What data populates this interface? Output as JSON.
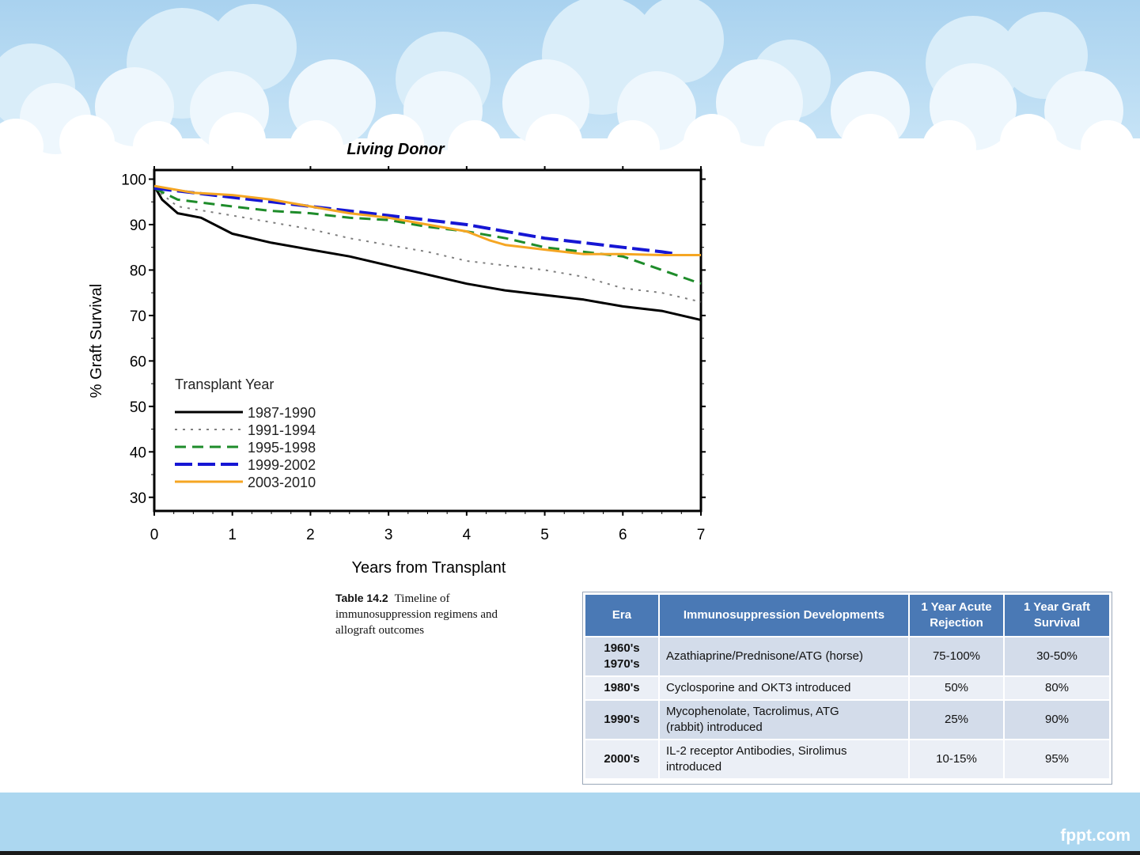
{
  "slide": {
    "footer_brand": "fppt.com",
    "colors": {
      "sky": "#b2d6ef",
      "cloud": "#ffffff",
      "footer_band": "#acd7f0"
    }
  },
  "chart_data": {
    "type": "line",
    "title": "Living Donor",
    "xlabel": "Years from Transplant",
    "ylabel": "% Graft Survival",
    "xlim": [
      0,
      7
    ],
    "ylim": [
      27,
      102
    ],
    "x_ticks": [
      "0",
      "1",
      "2",
      "3",
      "4",
      "5",
      "6",
      "7"
    ],
    "y_ticks": [
      "30",
      "40",
      "50",
      "60",
      "70",
      "80",
      "90",
      "100"
    ],
    "legend": {
      "title": "Transplant Year",
      "position": "lower-left"
    },
    "series": [
      {
        "name": "1987-1990",
        "color": "#000000",
        "dash": "solid",
        "points": [
          [
            0,
            98.5
          ],
          [
            0.1,
            95.5
          ],
          [
            0.3,
            92.5
          ],
          [
            0.6,
            91.5
          ],
          [
            1,
            88
          ],
          [
            1.5,
            86
          ],
          [
            2,
            84.5
          ],
          [
            2.5,
            83
          ],
          [
            3,
            81
          ],
          [
            3.5,
            79
          ],
          [
            4,
            77
          ],
          [
            4.5,
            75.5
          ],
          [
            5,
            74.5
          ],
          [
            5.5,
            73.5
          ],
          [
            6,
            72
          ],
          [
            6.5,
            71
          ],
          [
            7,
            69
          ]
        ]
      },
      {
        "name": "1991-1994",
        "color": "#7f7f7f",
        "dash": "dot",
        "points": [
          [
            0,
            98
          ],
          [
            0.3,
            94
          ],
          [
            1,
            92
          ],
          [
            1.5,
            90.5
          ],
          [
            2,
            89
          ],
          [
            2.5,
            87
          ],
          [
            3,
            85.5
          ],
          [
            3.5,
            84
          ],
          [
            4,
            82
          ],
          [
            4.5,
            81
          ],
          [
            5,
            80
          ],
          [
            5.5,
            78.5
          ],
          [
            6,
            76
          ],
          [
            6.5,
            75
          ],
          [
            7,
            73
          ]
        ]
      },
      {
        "name": "1995-1998",
        "color": "#1e8c2a",
        "dash": "dash",
        "points": [
          [
            0,
            98
          ],
          [
            0.3,
            95.5
          ],
          [
            1,
            94
          ],
          [
            1.5,
            93
          ],
          [
            2,
            92.5
          ],
          [
            2.5,
            91.5
          ],
          [
            3,
            91
          ],
          [
            3.5,
            89.5
          ],
          [
            4,
            88.5
          ],
          [
            4.5,
            87
          ],
          [
            5,
            85
          ],
          [
            5.5,
            84
          ],
          [
            6,
            83
          ],
          [
            6.5,
            80
          ],
          [
            7,
            77
          ]
        ]
      },
      {
        "name": "1999-2002",
        "color": "#1616d4",
        "dash": "longdash",
        "points": [
          [
            0,
            98
          ],
          [
            0.5,
            97
          ],
          [
            1,
            96
          ],
          [
            1.5,
            95
          ],
          [
            2,
            94
          ],
          [
            2.5,
            93
          ],
          [
            3,
            92
          ],
          [
            3.5,
            91
          ],
          [
            4,
            90
          ],
          [
            4.5,
            88.5
          ],
          [
            5,
            87
          ],
          [
            5.5,
            86
          ],
          [
            6,
            85
          ],
          [
            6.5,
            84
          ],
          [
            6.7,
            83.5
          ]
        ]
      },
      {
        "name": "2003-2010",
        "color": "#f5a623",
        "dash": "solid",
        "points": [
          [
            0,
            98.5
          ],
          [
            0.5,
            97
          ],
          [
            1,
            96.5
          ],
          [
            1.5,
            95.5
          ],
          [
            2,
            94
          ],
          [
            2.5,
            92.5
          ],
          [
            3,
            91.5
          ],
          [
            3.5,
            90
          ],
          [
            4,
            88.5
          ],
          [
            4.3,
            86.5
          ],
          [
            4.5,
            85.5
          ],
          [
            5,
            84.5
          ],
          [
            5.5,
            83.5
          ],
          [
            6,
            83.5
          ],
          [
            6.5,
            83.3
          ],
          [
            7,
            83.3
          ]
        ]
      }
    ]
  },
  "caption": {
    "label": "Table 14.2",
    "text": "Timeline of immunosuppression regimens and allograft outcomes"
  },
  "table": {
    "headers": [
      "Era",
      "Immunosuppression Developments",
      "1 Year Acute Rejection",
      "1 Year Graft Survival"
    ],
    "rows": [
      {
        "era_line1": "1960's",
        "era_line2": "1970's",
        "dev_line1": "Azathiaprine/Prednisone/ATG (horse)",
        "dev_line2": "",
        "rejection": "75-100%",
        "survival": "30-50%"
      },
      {
        "era_line1": "1980's",
        "era_line2": "",
        "dev_line1": "Cyclosporine and OKT3 introduced",
        "dev_line2": "",
        "rejection": "50%",
        "survival": "80%"
      },
      {
        "era_line1": "1990's",
        "era_line2": "",
        "dev_line1": "Mycophenolate, Tacrolimus, ATG",
        "dev_line2": "(rabbit) introduced",
        "rejection": "25%",
        "survival": "90%"
      },
      {
        "era_line1": "2000's",
        "era_line2": "",
        "dev_line1": "IL-2 receptor Antibodies, Sirolimus",
        "dev_line2": "introduced",
        "rejection": "10-15%",
        "survival": "95%"
      }
    ]
  }
}
